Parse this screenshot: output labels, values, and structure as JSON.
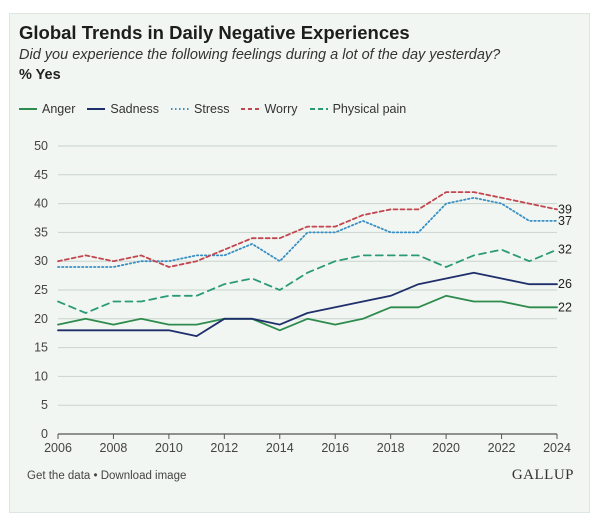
{
  "chart_data": {
    "type": "line",
    "title": "Global Trends in Daily Negative Experiences",
    "subtitle": "Did you experience the following feelings during a lot of the day yesterday?",
    "ylabel": "% Yes",
    "xlabel": "",
    "ylim": [
      0,
      50
    ],
    "yticks": [
      0,
      5,
      10,
      15,
      20,
      25,
      30,
      35,
      40,
      45,
      50
    ],
    "xticks": [
      2006,
      2008,
      2010,
      2012,
      2014,
      2016,
      2018,
      2020,
      2022,
      2024
    ],
    "grid": true,
    "legend_position": "top",
    "x": [
      2006,
      2007,
      2008,
      2009,
      2010,
      2011,
      2012,
      2013,
      2014,
      2015,
      2016,
      2017,
      2018,
      2019,
      2020,
      2021,
      2022,
      2023,
      2024
    ],
    "series": [
      {
        "name": "Anger",
        "color": "#2e8b4e",
        "style": "solid",
        "values": [
          19,
          20,
          19,
          20,
          19,
          19,
          20,
          20,
          18,
          20,
          19,
          20,
          22,
          22,
          24,
          23,
          23,
          22,
          22
        ],
        "end_label": "22"
      },
      {
        "name": "Sadness",
        "color": "#1f2f6b",
        "style": "solid",
        "values": [
          18,
          18,
          18,
          18,
          18,
          17,
          20,
          20,
          19,
          21,
          22,
          23,
          24,
          26,
          27,
          28,
          27,
          26,
          26
        ],
        "end_label": "26"
      },
      {
        "name": "Stress",
        "color": "#3a8fc4",
        "style": "dotted",
        "values": [
          29,
          29,
          29,
          30,
          30,
          31,
          31,
          33,
          30,
          35,
          35,
          37,
          35,
          35,
          40,
          41,
          40,
          37,
          37
        ],
        "end_label": "37"
      },
      {
        "name": "Worry",
        "color": "#c2454f",
        "style": "dashed",
        "values": [
          30,
          31,
          30,
          31,
          29,
          30,
          32,
          34,
          34,
          36,
          36,
          38,
          39,
          39,
          42,
          42,
          41,
          40,
          39
        ],
        "end_label": "39"
      },
      {
        "name": "Physical pain",
        "color": "#2a9a78",
        "style": "longdash",
        "values": [
          23,
          21,
          23,
          23,
          24,
          24,
          26,
          27,
          25,
          28,
          30,
          31,
          31,
          31,
          29,
          31,
          32,
          30,
          32
        ],
        "end_label": "32"
      }
    ]
  },
  "footer": {
    "links": "Get the data • Download image",
    "brand": "GALLUP"
  }
}
